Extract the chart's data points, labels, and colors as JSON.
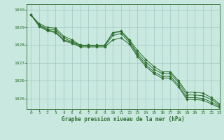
{
  "title": "Graphe pression niveau de la mer (hPa)",
  "bg_color": "#c8e8e0",
  "grid_color": "#a0c8c0",
  "line_color": "#2d6e2d",
  "xlim": [
    -0.5,
    23
  ],
  "ylim": [
    1024.4,
    1030.3
  ],
  "yticks": [
    1025,
    1026,
    1027,
    1028,
    1029,
    1030
  ],
  "xticks": [
    0,
    1,
    2,
    3,
    4,
    5,
    6,
    7,
    8,
    9,
    10,
    11,
    12,
    13,
    14,
    15,
    16,
    17,
    18,
    19,
    20,
    21,
    22,
    23
  ],
  "series": [
    [
      1029.7,
      1029.2,
      1029.0,
      1028.95,
      1028.5,
      1028.3,
      1028.0,
      1028.0,
      1028.0,
      1028.0,
      1028.7,
      1028.8,
      1028.3,
      1027.7,
      1027.2,
      1026.8,
      1026.5,
      1026.5,
      1026.0,
      1025.35,
      1025.35,
      1025.3,
      1025.05,
      1024.7
    ],
    [
      1029.7,
      1029.15,
      1028.9,
      1028.85,
      1028.4,
      1028.2,
      1028.0,
      1028.0,
      1028.0,
      1028.0,
      1028.7,
      1028.75,
      1028.25,
      1027.55,
      1027.05,
      1026.65,
      1026.4,
      1026.4,
      1025.9,
      1025.2,
      1025.2,
      1025.15,
      1024.95,
      1024.62
    ],
    [
      1029.7,
      1029.1,
      1028.85,
      1028.75,
      1028.3,
      1028.15,
      1027.95,
      1027.95,
      1027.95,
      1027.95,
      1028.55,
      1028.65,
      1028.15,
      1027.45,
      1026.9,
      1026.5,
      1026.25,
      1026.25,
      1025.75,
      1025.05,
      1025.05,
      1025.0,
      1024.8,
      1024.55
    ],
    [
      1029.7,
      1029.05,
      1028.8,
      1028.7,
      1028.25,
      1028.1,
      1027.9,
      1027.9,
      1027.9,
      1027.9,
      1028.3,
      1028.4,
      1028.05,
      1027.35,
      1026.8,
      1026.4,
      1026.15,
      1026.15,
      1025.65,
      1024.95,
      1024.95,
      1024.9,
      1024.7,
      1024.48
    ]
  ]
}
